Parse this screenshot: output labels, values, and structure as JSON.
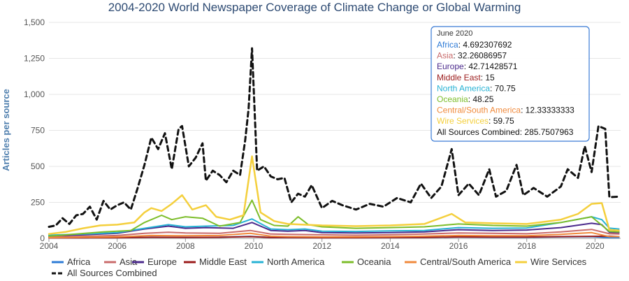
{
  "chart_data": {
    "type": "line",
    "title": "2004-2020 World Newspaper Coverage of Climate Change or Global Warming",
    "xlabel": "",
    "ylabel": "Articles per source",
    "xlim": [
      2004,
      2020.75
    ],
    "ylim": [
      0,
      1500
    ],
    "x_ticks": [
      "2004",
      "2006",
      "2008",
      "2010",
      "2012",
      "2014",
      "2016",
      "2018",
      "2020"
    ],
    "y_ticks": [
      "0",
      "250",
      "500",
      "750",
      "1,000",
      "1,250",
      "1,500"
    ],
    "grid": "horizontal",
    "legend_position": "bottom",
    "series": [
      {
        "name": "Africa",
        "color": "#2e7bd6",
        "dash": "",
        "width": 2,
        "points": [
          [
            2004,
            3
          ],
          [
            2005,
            4
          ],
          [
            2006,
            6
          ],
          [
            2007,
            8
          ],
          [
            2008,
            7
          ],
          [
            2009,
            8
          ],
          [
            2009.9,
            14
          ],
          [
            2010.5,
            6
          ],
          [
            2011,
            6
          ],
          [
            2012,
            5
          ],
          [
            2013,
            5
          ],
          [
            2014,
            6
          ],
          [
            2015,
            7
          ],
          [
            2016,
            9
          ],
          [
            2017,
            8
          ],
          [
            2018,
            8
          ],
          [
            2019,
            10
          ],
          [
            2019.9,
            12
          ],
          [
            2020.42,
            4.69
          ],
          [
            2020.7,
            5
          ]
        ]
      },
      {
        "name": "Asia",
        "color": "#c96b6b",
        "dash": "",
        "width": 2,
        "points": [
          [
            2004,
            10
          ],
          [
            2005,
            14
          ],
          [
            2006,
            20
          ],
          [
            2006.8,
            35
          ],
          [
            2007.5,
            42
          ],
          [
            2008,
            38
          ],
          [
            2009,
            35
          ],
          [
            2009.9,
            55
          ],
          [
            2010.5,
            30
          ],
          [
            2011,
            28
          ],
          [
            2012,
            25
          ],
          [
            2013,
            22
          ],
          [
            2014,
            25
          ],
          [
            2015,
            30
          ],
          [
            2016,
            38
          ],
          [
            2017,
            35
          ],
          [
            2018,
            32
          ],
          [
            2019,
            45
          ],
          [
            2019.9,
            62
          ],
          [
            2020.42,
            32.26
          ],
          [
            2020.7,
            30
          ]
        ]
      },
      {
        "name": "Europe",
        "color": "#4b2a8c",
        "dash": "",
        "width": 2,
        "points": [
          [
            2004,
            18
          ],
          [
            2005,
            25
          ],
          [
            2006,
            35
          ],
          [
            2006.8,
            65
          ],
          [
            2007.5,
            85
          ],
          [
            2008,
            70
          ],
          [
            2008.6,
            75
          ],
          [
            2009.4,
            70
          ],
          [
            2009.95,
            110
          ],
          [
            2010.5,
            55
          ],
          [
            2011,
            50
          ],
          [
            2011.5,
            55
          ],
          [
            2012,
            40
          ],
          [
            2013,
            38
          ],
          [
            2014,
            40
          ],
          [
            2015,
            45
          ],
          [
            2016,
            60
          ],
          [
            2017,
            55
          ],
          [
            2018,
            58
          ],
          [
            2019,
            75
          ],
          [
            2019.9,
            105
          ],
          [
            2020.2,
            95
          ],
          [
            2020.42,
            42.71
          ],
          [
            2020.7,
            40
          ]
        ]
      },
      {
        "name": "Middle East",
        "color": "#9b1b1b",
        "dash": "",
        "width": 2,
        "points": [
          [
            2004,
            3
          ],
          [
            2005,
            4
          ],
          [
            2006,
            5
          ],
          [
            2007,
            8
          ],
          [
            2008,
            7
          ],
          [
            2009,
            8
          ],
          [
            2009.9,
            12
          ],
          [
            2010.5,
            6
          ],
          [
            2011,
            6
          ],
          [
            2012,
            5
          ],
          [
            2013,
            5
          ],
          [
            2014,
            6
          ],
          [
            2015,
            7
          ],
          [
            2016,
            10
          ],
          [
            2017,
            9
          ],
          [
            2018,
            9
          ],
          [
            2019,
            12
          ],
          [
            2019.9,
            14
          ],
          [
            2020.42,
            15
          ],
          [
            2020.7,
            12
          ]
        ]
      },
      {
        "name": "North America",
        "color": "#27b2d4",
        "dash": "",
        "width": 2,
        "points": [
          [
            2004,
            22
          ],
          [
            2005,
            30
          ],
          [
            2006,
            40
          ],
          [
            2006.8,
            70
          ],
          [
            2007.5,
            95
          ],
          [
            2008,
            80
          ],
          [
            2008.6,
            85
          ],
          [
            2009.4,
            90
          ],
          [
            2009.95,
            135
          ],
          [
            2010.5,
            65
          ],
          [
            2011,
            60
          ],
          [
            2011.5,
            65
          ],
          [
            2012,
            50
          ],
          [
            2013,
            48
          ],
          [
            2014,
            52
          ],
          [
            2015,
            55
          ],
          [
            2016,
            75
          ],
          [
            2017,
            70
          ],
          [
            2018,
            72
          ],
          [
            2019,
            110
          ],
          [
            2019.9,
            150
          ],
          [
            2020.2,
            130
          ],
          [
            2020.42,
            70.75
          ],
          [
            2020.7,
            65
          ]
        ]
      },
      {
        "name": "Oceania",
        "color": "#7cbd2a",
        "dash": "",
        "width": 2,
        "points": [
          [
            2004,
            15
          ],
          [
            2004.8,
            30
          ],
          [
            2005.6,
            45
          ],
          [
            2006.4,
            55
          ],
          [
            2006.8,
            110
          ],
          [
            2007.3,
            160
          ],
          [
            2007.6,
            130
          ],
          [
            2008,
            150
          ],
          [
            2008.5,
            140
          ],
          [
            2009,
            85
          ],
          [
            2009.6,
            110
          ],
          [
            2009.95,
            265
          ],
          [
            2010.2,
            130
          ],
          [
            2010.6,
            90
          ],
          [
            2011,
            85
          ],
          [
            2011.3,
            150
          ],
          [
            2011.6,
            95
          ],
          [
            2012,
            80
          ],
          [
            2013,
            70
          ],
          [
            2014,
            75
          ],
          [
            2015,
            80
          ],
          [
            2016,
            100
          ],
          [
            2017,
            90
          ],
          [
            2018,
            85
          ],
          [
            2019,
            110
          ],
          [
            2019.9,
            150
          ],
          [
            2020.42,
            48.25
          ],
          [
            2020.7,
            45
          ]
        ]
      },
      {
        "name": "Central/South America",
        "color": "#f08a3c",
        "dash": "",
        "width": 2,
        "points": [
          [
            2004,
            5
          ],
          [
            2005,
            8
          ],
          [
            2006,
            10
          ],
          [
            2007,
            20
          ],
          [
            2008,
            18
          ],
          [
            2009,
            20
          ],
          [
            2009.9,
            35
          ],
          [
            2010.5,
            15
          ],
          [
            2011,
            12
          ],
          [
            2012,
            10
          ],
          [
            2013,
            10
          ],
          [
            2014,
            12
          ],
          [
            2015,
            15
          ],
          [
            2016,
            20
          ],
          [
            2017,
            18
          ],
          [
            2018,
            18
          ],
          [
            2019,
            28
          ],
          [
            2019.9,
            40
          ],
          [
            2020.42,
            12.33
          ],
          [
            2020.7,
            12
          ]
        ]
      },
      {
        "name": "Wire Services",
        "color": "#f4cf3c",
        "dash": "",
        "width": 2.5,
        "points": [
          [
            2004,
            30
          ],
          [
            2004.5,
            45
          ],
          [
            2005,
            70
          ],
          [
            2005.5,
            90
          ],
          [
            2006,
            95
          ],
          [
            2006.5,
            110
          ],
          [
            2006.8,
            180
          ],
          [
            2007,
            210
          ],
          [
            2007.3,
            190
          ],
          [
            2007.6,
            240
          ],
          [
            2007.9,
            300
          ],
          [
            2008.2,
            200
          ],
          [
            2008.6,
            230
          ],
          [
            2008.9,
            150
          ],
          [
            2009.3,
            130
          ],
          [
            2009.7,
            160
          ],
          [
            2009.95,
            570
          ],
          [
            2010.2,
            180
          ],
          [
            2010.6,
            120
          ],
          [
            2011,
            100
          ],
          [
            2012,
            90
          ],
          [
            2013,
            85
          ],
          [
            2014,
            90
          ],
          [
            2015,
            100
          ],
          [
            2015.8,
            170
          ],
          [
            2016.2,
            110
          ],
          [
            2017,
            105
          ],
          [
            2018,
            100
          ],
          [
            2019,
            130
          ],
          [
            2019.5,
            170
          ],
          [
            2019.9,
            240
          ],
          [
            2020.2,
            245
          ],
          [
            2020.42,
            59.75
          ],
          [
            2020.7,
            55
          ]
        ]
      },
      {
        "name": "All Sources Combined",
        "color": "#111111",
        "dash": "7,5",
        "width": 3,
        "points": [
          [
            2004,
            80
          ],
          [
            2004.2,
            90
          ],
          [
            2004.4,
            140
          ],
          [
            2004.6,
            100
          ],
          [
            2004.8,
            160
          ],
          [
            2005,
            170
          ],
          [
            2005.2,
            220
          ],
          [
            2005.4,
            130
          ],
          [
            2005.6,
            260
          ],
          [
            2005.8,
            200
          ],
          [
            2006,
            230
          ],
          [
            2006.2,
            250
          ],
          [
            2006.4,
            200
          ],
          [
            2006.6,
            350
          ],
          [
            2006.8,
            510
          ],
          [
            2007,
            700
          ],
          [
            2007.2,
            620
          ],
          [
            2007.4,
            730
          ],
          [
            2007.6,
            480
          ],
          [
            2007.8,
            760
          ],
          [
            2007.9,
            780
          ],
          [
            2008.1,
            500
          ],
          [
            2008.3,
            560
          ],
          [
            2008.5,
            660
          ],
          [
            2008.6,
            400
          ],
          [
            2008.8,
            470
          ],
          [
            2009,
            440
          ],
          [
            2009.2,
            390
          ],
          [
            2009.4,
            470
          ],
          [
            2009.6,
            440
          ],
          [
            2009.75,
            680
          ],
          [
            2009.85,
            900
          ],
          [
            2009.95,
            1320
          ],
          [
            2010.1,
            470
          ],
          [
            2010.3,
            500
          ],
          [
            2010.5,
            430
          ],
          [
            2010.7,
            410
          ],
          [
            2010.9,
            420
          ],
          [
            2011.1,
            250
          ],
          [
            2011.3,
            310
          ],
          [
            2011.5,
            290
          ],
          [
            2011.7,
            370
          ],
          [
            2012,
            210
          ],
          [
            2012.3,
            260
          ],
          [
            2012.6,
            230
          ],
          [
            2013,
            200
          ],
          [
            2013.4,
            240
          ],
          [
            2013.8,
            220
          ],
          [
            2014.2,
            280
          ],
          [
            2014.6,
            250
          ],
          [
            2014.9,
            380
          ],
          [
            2015.2,
            280
          ],
          [
            2015.5,
            360
          ],
          [
            2015.8,
            620
          ],
          [
            2016,
            300
          ],
          [
            2016.3,
            380
          ],
          [
            2016.6,
            300
          ],
          [
            2016.9,
            480
          ],
          [
            2017.1,
            290
          ],
          [
            2017.4,
            330
          ],
          [
            2017.7,
            510
          ],
          [
            2017.9,
            300
          ],
          [
            2018.2,
            350
          ],
          [
            2018.6,
            290
          ],
          [
            2019,
            360
          ],
          [
            2019.2,
            480
          ],
          [
            2019.5,
            420
          ],
          [
            2019.7,
            640
          ],
          [
            2019.9,
            460
          ],
          [
            2020.1,
            780
          ],
          [
            2020.3,
            760
          ],
          [
            2020.42,
            285.75
          ],
          [
            2020.7,
            290
          ]
        ]
      }
    ],
    "tooltip": {
      "title": "June 2020",
      "rows": [
        {
          "label": "Africa",
          "value": "4.692307692",
          "color": "#2e7bd6"
        },
        {
          "label": "Asia",
          "value": "32.26086957",
          "color": "#c96b6b"
        },
        {
          "label": "Europe",
          "value": "42.71428571",
          "color": "#4b2a8c"
        },
        {
          "label": "Middle East",
          "value": "15",
          "color": "#9b1b1b"
        },
        {
          "label": "North America",
          "value": "70.75",
          "color": "#27b2d4"
        },
        {
          "label": "Oceania",
          "value": "48.25",
          "color": "#7cbd2a"
        },
        {
          "label": "Central/South America",
          "value": "12.33333333",
          "color": "#f08a3c"
        },
        {
          "label": "Wire Services",
          "value": "59.75",
          "color": "#f4cf3c"
        },
        {
          "label": "All Sources Combined",
          "value": "285.7507963",
          "color": "#111111"
        }
      ]
    }
  }
}
